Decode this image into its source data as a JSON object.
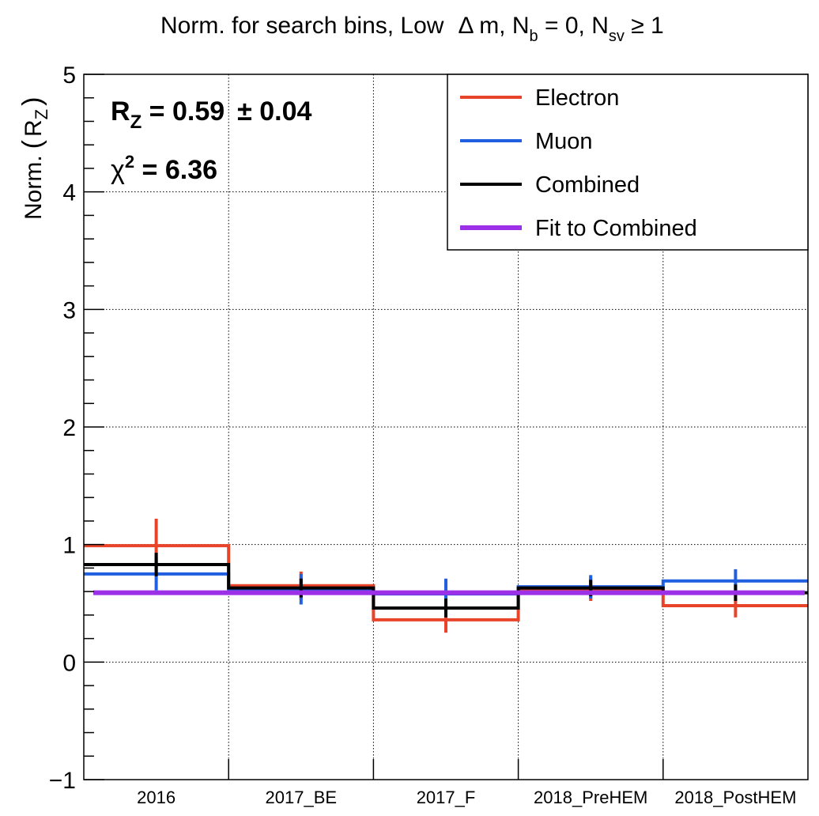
{
  "chart_data": {
    "type": "histogram",
    "title": "Norm. for search bins, Low  Δ m, N_b = 0, N_sv ≥ 1",
    "title_parts": {
      "prefix": "Norm. for search bins, Low",
      "delta": "Δ",
      "m_part": " m, N",
      "b_sub": "b",
      "mid": " = 0, N",
      "sv_sub": "sv",
      "suffix": " ≥ 1"
    },
    "ylabel": "Norm. (R_Z)",
    "ylabel_parts": {
      "main": "Norm.",
      "R": "R",
      "sub": "Z"
    },
    "ylim": [
      -1,
      5
    ],
    "yticks": [
      "−1",
      "0",
      "1",
      "2",
      "3",
      "4",
      "5"
    ],
    "grid": true,
    "categories": [
      "2016",
      "2017_BE",
      "2017_F",
      "2018_PreHEM",
      "2018_PostHEM"
    ],
    "series": [
      {
        "name": "Electron",
        "color": "#e8442a",
        "values": [
          0.99,
          0.65,
          0.36,
          0.62,
          0.48
        ],
        "errors": [
          0.23,
          0.12,
          0.11,
          0.1,
          0.1
        ]
      },
      {
        "name": "Muon",
        "color": "#1f5fe0",
        "values": [
          0.75,
          0.62,
          0.58,
          0.64,
          0.69
        ],
        "errors": [
          0.14,
          0.13,
          0.13,
          0.1,
          0.1
        ]
      },
      {
        "name": "Combined",
        "color": "#000000",
        "values": [
          0.83,
          0.63,
          0.46,
          0.63,
          0.59
        ],
        "errors": [
          0.1,
          0.08,
          0.08,
          0.07,
          0.07
        ]
      },
      {
        "name": "Fit to Combined",
        "color": "#9b30e6",
        "values": [
          0.59,
          0.59,
          0.59,
          0.59,
          0.59
        ],
        "errors": [
          0,
          0,
          0,
          0,
          0
        ]
      }
    ],
    "annotations": {
      "rz_R": "R",
      "rz_sub": "Z",
      "rz_value": " = 0.59",
      "rz_err": "± 0.04",
      "chi_symbol": "χ",
      "chi_sup": "2",
      "chi_value": " = 6.36"
    },
    "legend_position": "top-right"
  }
}
